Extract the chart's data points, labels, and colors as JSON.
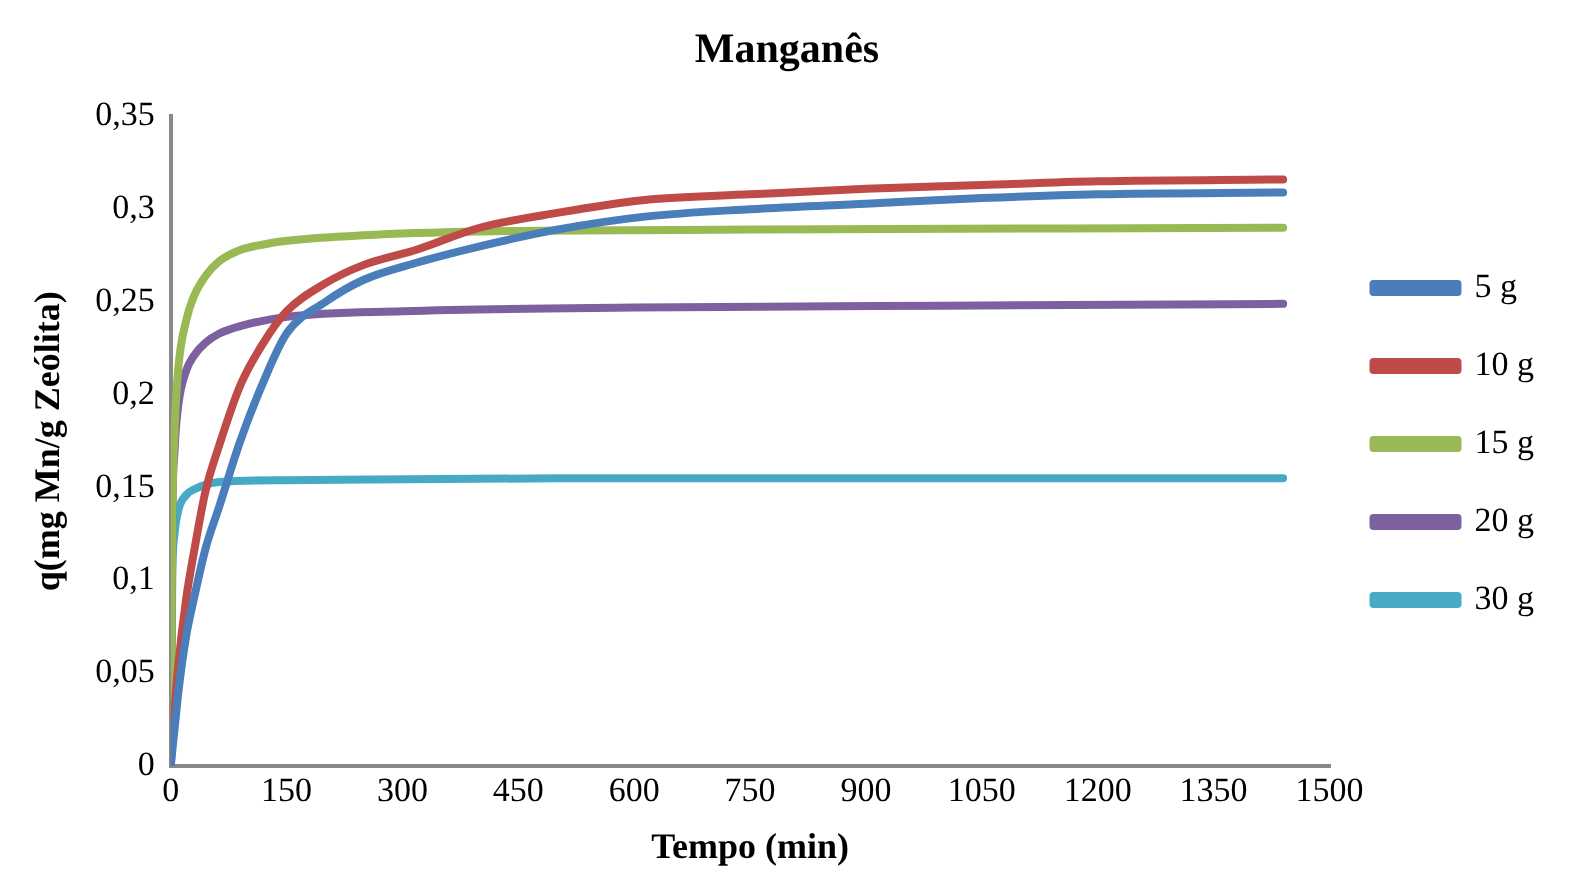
{
  "chart_data": {
    "type": "line",
    "title": "Manganês",
    "xlabel": "Tempo (min)",
    "ylabel": "q(mg Mn/g Zeólita)",
    "xlim": [
      0,
      1500
    ],
    "xticks": [
      0,
      150,
      300,
      450,
      600,
      750,
      900,
      1050,
      1200,
      1350,
      1500
    ],
    "ylim": [
      0,
      0.35
    ],
    "yticks": [
      0,
      {
        "value": 0.05,
        "label": "0,05"
      },
      {
        "value": 0.1,
        "label": "0,1"
      },
      {
        "value": 0.15,
        "label": "0,15"
      },
      {
        "value": 0.2,
        "label": "0,2"
      },
      {
        "value": 0.25,
        "label": "0,25"
      },
      {
        "value": 0.3,
        "label": "0,3"
      },
      {
        "value": 0.35,
        "label": "0,35"
      }
    ],
    "grid": false,
    "legend": "right",
    "marker": "none",
    "line_style": "solid",
    "series": [
      {
        "name": "5 g",
        "color": "#4a7ebb",
        "x": [
          0,
          5,
          10,
          20,
          30,
          45,
          63,
          90,
          120,
          150,
          200,
          250,
          317,
          400,
          500,
          614,
          750,
          900,
          1050,
          1200,
          1440
        ],
        "values": [
          0,
          0.02,
          0.04,
          0.07,
          0.09,
          0.117,
          0.14,
          0.175,
          0.207,
          0.233,
          0.25,
          0.262,
          0.271,
          0.28,
          0.289,
          0.296,
          0.3,
          0.303,
          0.306,
          0.308,
          0.309
        ]
      },
      {
        "name": "10 g",
        "color": "#be4b48",
        "x": [
          0,
          5,
          10,
          20,
          30,
          45,
          63,
          90,
          120,
          150,
          200,
          250,
          317,
          400,
          500,
          614,
          750,
          900,
          1050,
          1200,
          1440
        ],
        "values": [
          0,
          0.03,
          0.055,
          0.09,
          0.115,
          0.148,
          0.173,
          0.205,
          0.228,
          0.245,
          0.26,
          0.27,
          0.278,
          0.29,
          0.298,
          0.305,
          0.308,
          0.311,
          0.313,
          0.315,
          0.316
        ]
      },
      {
        "name": "15 g",
        "color": "#98b954",
        "x": [
          0,
          2,
          5,
          10,
          20,
          30,
          45,
          63,
          90,
          120,
          150,
          250,
          400,
          750,
          1440
        ],
        "values": [
          0,
          0.13,
          0.18,
          0.215,
          0.24,
          0.253,
          0.264,
          0.272,
          0.278,
          0.281,
          0.283,
          0.286,
          0.288,
          0.289,
          0.29
        ]
      },
      {
        "name": "20 g",
        "color": "#7d60a0",
        "x": [
          0,
          2,
          5,
          10,
          20,
          30,
          45,
          63,
          90,
          150,
          300,
          600,
          1000,
          1440
        ],
        "values": [
          0,
          0.13,
          0.17,
          0.195,
          0.213,
          0.221,
          0.228,
          0.233,
          0.237,
          0.242,
          0.245,
          0.247,
          0.248,
          0.249
        ]
      },
      {
        "name": "30 g",
        "color": "#46aac5",
        "x": [
          0,
          2,
          5,
          10,
          20,
          30,
          63,
          150,
          500,
          1440
        ],
        "values": [
          0,
          0.1,
          0.125,
          0.138,
          0.146,
          0.149,
          0.153,
          0.154,
          0.155,
          0.155
        ]
      }
    ]
  }
}
